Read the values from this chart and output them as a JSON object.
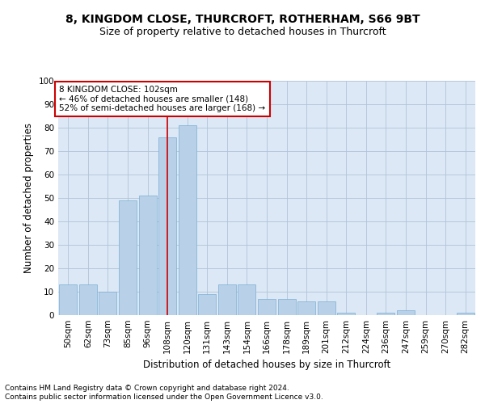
{
  "title": "8, KINGDOM CLOSE, THURCROFT, ROTHERHAM, S66 9BT",
  "subtitle": "Size of property relative to detached houses in Thurcroft",
  "xlabel": "Distribution of detached houses by size in Thurcroft",
  "ylabel": "Number of detached properties",
  "categories": [
    "50sqm",
    "62sqm",
    "73sqm",
    "85sqm",
    "96sqm",
    "108sqm",
    "120sqm",
    "131sqm",
    "143sqm",
    "154sqm",
    "166sqm",
    "178sqm",
    "189sqm",
    "201sqm",
    "212sqm",
    "224sqm",
    "236sqm",
    "247sqm",
    "259sqm",
    "270sqm",
    "282sqm"
  ],
  "values": [
    13,
    13,
    10,
    49,
    51,
    76,
    81,
    9,
    13,
    13,
    7,
    7,
    6,
    6,
    1,
    0,
    1,
    2,
    0,
    0,
    1
  ],
  "bar_color": "#b8d0e8",
  "bar_edge_color": "#7aafd4",
  "highlight_bar_index": 5,
  "background_color": "#ffffff",
  "plot_bg_color": "#dce8f5",
  "grid_color": "#b0c4d8",
  "annotation_text": "8 KINGDOM CLOSE: 102sqm\n← 46% of detached houses are smaller (148)\n52% of semi-detached houses are larger (168) →",
  "annotation_box_facecolor": "#ffffff",
  "annotation_box_edgecolor": "#cc0000",
  "vline_color": "#cc0000",
  "footnote1": "Contains HM Land Registry data © Crown copyright and database right 2024.",
  "footnote2": "Contains public sector information licensed under the Open Government Licence v3.0.",
  "ylim": [
    0,
    100
  ],
  "yticks": [
    0,
    10,
    20,
    30,
    40,
    50,
    60,
    70,
    80,
    90,
    100
  ],
  "title_fontsize": 10,
  "subtitle_fontsize": 9,
  "axis_label_fontsize": 8.5,
  "tick_fontsize": 7.5,
  "annotation_fontsize": 7.5,
  "footnote_fontsize": 6.5
}
